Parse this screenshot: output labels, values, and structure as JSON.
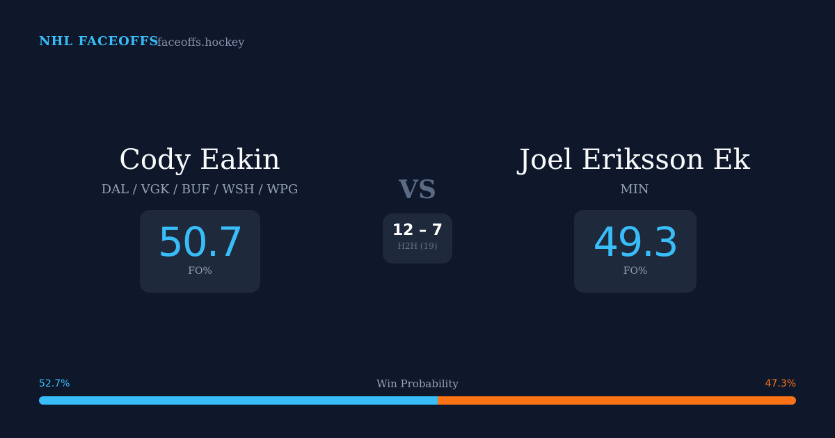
{
  "header": {
    "brand": "NHL FACEOFFS",
    "site": "faceoffs.hockey"
  },
  "left": {
    "name": "Cody Eakin",
    "teams": "DAL / VGK / BUF / WSH / WPG",
    "fo_pct": "50.7",
    "fo_label": "FO%"
  },
  "right": {
    "name": "Joel Eriksson Ek",
    "teams": "MIN",
    "fo_pct": "49.3",
    "fo_label": "FO%"
  },
  "center": {
    "vs": "VS",
    "score": "12 – 7",
    "h2h": "H2H (19)"
  },
  "probability": {
    "label": "Win Probability",
    "left": "52.7%",
    "right": "47.3%",
    "left_value": 52.7,
    "right_value": 47.3
  },
  "colors": {
    "left": "#38bdf8",
    "right": "#f97316",
    "background": "#0f172a",
    "card": "#1e293b"
  }
}
